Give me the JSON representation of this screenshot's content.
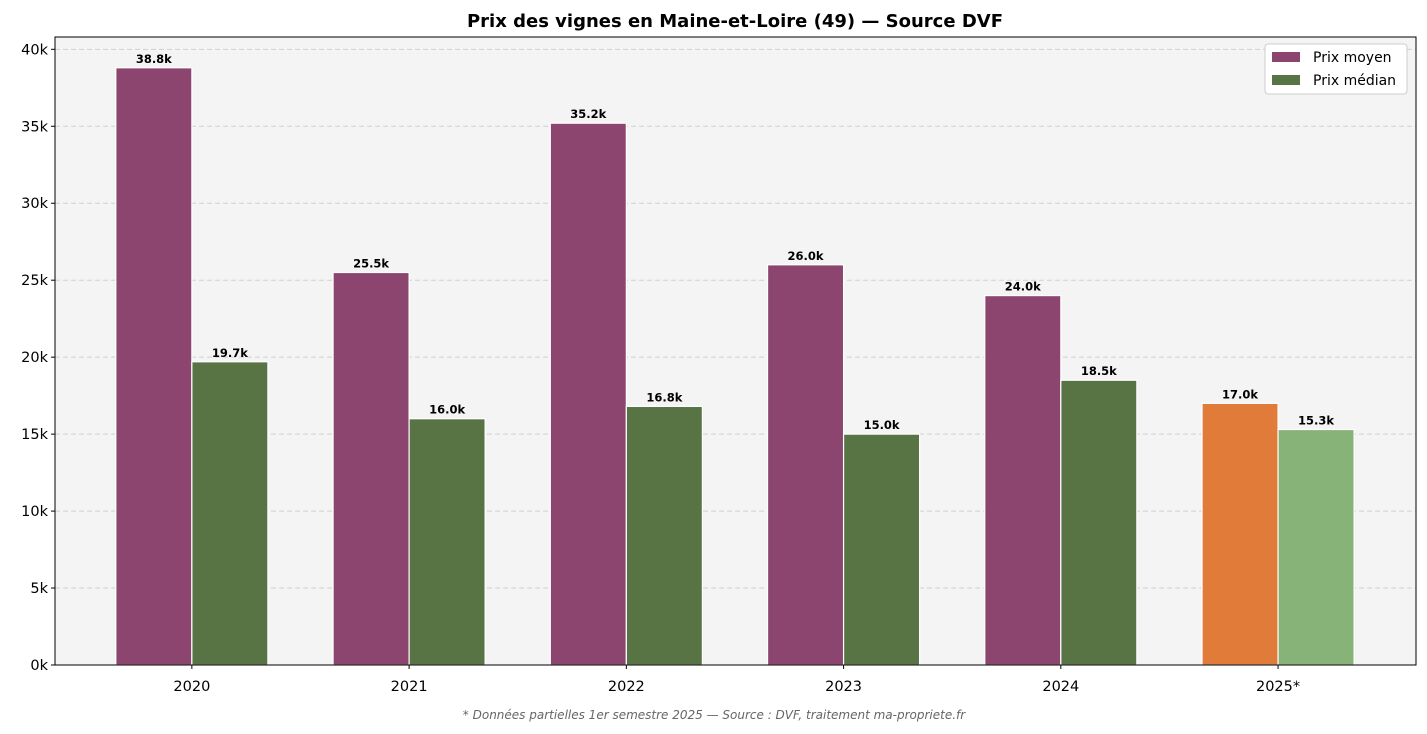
{
  "chart_data": {
    "type": "bar",
    "title": "Prix des vignes en Maine-et-Loire (49) — Source DVF",
    "footnote": "* Données partielles 1er semestre 2025 — Source : DVF, traitement ma-propriete.fr",
    "categories": [
      "2020",
      "2021",
      "2022",
      "2023",
      "2024",
      "2025*"
    ],
    "series": [
      {
        "name": "Prix moyen",
        "values": [
          38800,
          25500,
          35200,
          26000,
          24000,
          17000
        ],
        "labels": [
          "38.8k",
          "25.5k",
          "35.2k",
          "26.0k",
          "24.0k",
          "17.0k"
        ],
        "color": "#8b456e",
        "partial_color": "#e07b39"
      },
      {
        "name": "Prix médian",
        "values": [
          19700,
          16000,
          16800,
          15000,
          18500,
          15300
        ],
        "labels": [
          "19.7k",
          "16.0k",
          "16.8k",
          "15.0k",
          "18.5k",
          "15.3k"
        ],
        "color": "#587444",
        "partial_color": "#88b378"
      }
    ],
    "ylim": [
      0,
      40800
    ],
    "yticks": [
      0,
      5000,
      10000,
      15000,
      20000,
      25000,
      30000,
      35000,
      40000
    ],
    "ytick_labels": [
      "0k",
      "5k",
      "10k",
      "15k",
      "20k",
      "25k",
      "30k",
      "35k",
      "40k"
    ],
    "grid": "y-dashed",
    "legend": "top-right",
    "background": "#f4f4f4"
  }
}
